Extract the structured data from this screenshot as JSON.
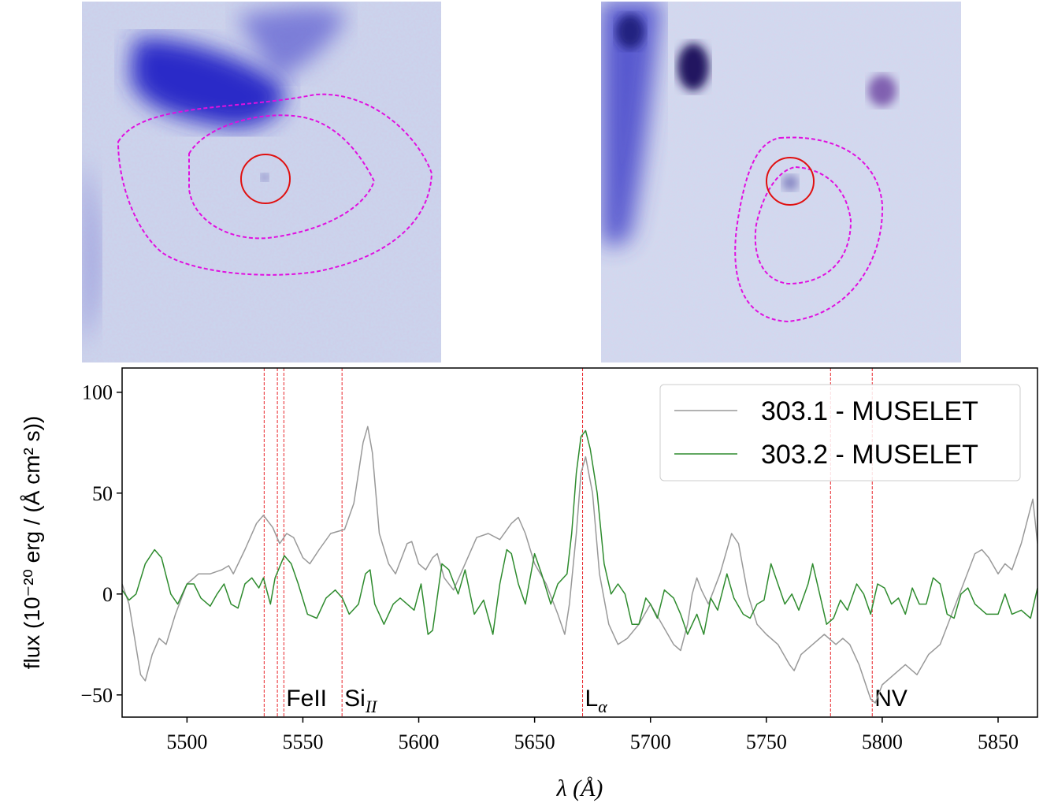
{
  "chart_data": {
    "type": "line",
    "xlabel": "λ (Å)",
    "ylabel": "flux (10⁻²⁰ erg / (Å cm² s))",
    "xlim": [
      5472,
      5867
    ],
    "ylim": [
      -61,
      112
    ],
    "xticks": [
      5500,
      5550,
      5600,
      5650,
      5700,
      5750,
      5800,
      5850
    ],
    "yticks": [
      {
        "value": -50,
        "label": "−50"
      },
      0,
      50,
      100
    ],
    "legend": "upper right",
    "line_markers": [
      {
        "x": 5533.3
      },
      {
        "x": 5539
      },
      {
        "x": 5541.8,
        "label": "FeII"
      },
      {
        "x": 5566.9,
        "label": "Si",
        "subscript": "II"
      },
      {
        "x": 5670.7,
        "label": "L",
        "subscript": "α"
      },
      {
        "x": 5777.7
      },
      {
        "x": 5795.7,
        "label": "NV"
      }
    ],
    "marker_color": "#e8242a",
    "series": [
      {
        "name": "303.1 - MUSELET",
        "color": "#999999",
        "x": [
          5472,
          5475,
          5480,
          5482,
          5485,
          5488,
          5491,
          5495,
          5500,
          5505,
          5510,
          5515,
          5518,
          5520,
          5525,
          5530,
          5533,
          5537,
          5540,
          5543,
          5546,
          5550,
          5553,
          5557,
          5562,
          5568,
          5572,
          5576,
          5578,
          5580,
          5583,
          5587,
          5590,
          5595,
          5597,
          5600,
          5603,
          5606,
          5608,
          5611,
          5615,
          5620,
          5625,
          5630,
          5635,
          5640,
          5643,
          5646,
          5650,
          5655,
          5660,
          5663,
          5665,
          5668,
          5670,
          5672,
          5675,
          5678,
          5682,
          5686,
          5690,
          5695,
          5700,
          5705,
          5710,
          5713,
          5716,
          5718,
          5720,
          5722,
          5725,
          5730,
          5735,
          5738,
          5742,
          5746,
          5750,
          5755,
          5760,
          5762,
          5765,
          5770,
          5775,
          5780,
          5783,
          5786,
          5790,
          5795,
          5797,
          5800,
          5805,
          5810,
          5815,
          5820,
          5825,
          5830,
          5835,
          5840,
          5843,
          5846,
          5850,
          5853,
          5856,
          5860,
          5865,
          5867
        ],
        "values": [
          5,
          -5,
          -40,
          -43,
          -30,
          -22,
          -25,
          -10,
          5,
          10,
          10,
          12,
          14,
          10,
          22,
          35,
          39,
          33,
          25,
          30,
          28,
          18,
          15,
          22,
          30,
          32,
          45,
          75,
          83,
          70,
          30,
          15,
          10,
          25,
          26,
          15,
          12,
          18,
          20,
          8,
          2,
          15,
          28,
          30,
          27,
          35,
          38,
          30,
          15,
          5,
          -10,
          -20,
          -5,
          30,
          60,
          68,
          50,
          10,
          -15,
          -25,
          -22,
          -15,
          -5,
          -15,
          -25,
          -28,
          -15,
          0,
          8,
          2,
          -5,
          10,
          30,
          25,
          0,
          -15,
          -20,
          -25,
          -35,
          -38,
          -30,
          -25,
          -20,
          -25,
          -22,
          -25,
          -35,
          -52,
          -54,
          -45,
          -40,
          -35,
          -40,
          -30,
          -25,
          -10,
          5,
          20,
          22,
          18,
          10,
          15,
          12,
          25,
          47,
          25
        ]
      },
      {
        "name": "303.2 - MUSELET",
        "color": "#2e8b2e",
        "x": [
          5472,
          5475,
          5478,
          5482,
          5486,
          5489,
          5493,
          5496,
          5500,
          5503,
          5506,
          5510,
          5513,
          5516,
          5519,
          5522,
          5525,
          5528,
          5531,
          5533,
          5536,
          5538,
          5542,
          5545,
          5548,
          5552,
          5556,
          5560,
          5564,
          5567,
          5570,
          5574,
          5577,
          5579,
          5581,
          5585,
          5589,
          5592,
          5595,
          5598,
          5601,
          5604,
          5606,
          5610,
          5613,
          5617,
          5620,
          5624,
          5628,
          5632,
          5635,
          5638,
          5640,
          5643,
          5646,
          5650,
          5653,
          5657,
          5660,
          5664,
          5666,
          5668,
          5670,
          5672,
          5674,
          5677,
          5680,
          5683,
          5686,
          5689,
          5692,
          5695,
          5698,
          5700,
          5703,
          5706,
          5710,
          5713,
          5716,
          5720,
          5723,
          5726,
          5729,
          5733,
          5736,
          5740,
          5743,
          5746,
          5749,
          5752,
          5755,
          5758,
          5761,
          5764,
          5768,
          5770,
          5773,
          5776,
          5779,
          5782,
          5785,
          5789,
          5792,
          5795,
          5798,
          5801,
          5804,
          5807,
          5810,
          5813,
          5816,
          5819,
          5822,
          5825,
          5828,
          5831,
          5834,
          5837,
          5840,
          5845,
          5850,
          5853,
          5856,
          5860,
          5864,
          5867
        ],
        "values": [
          2,
          -3,
          0,
          15,
          22,
          18,
          0,
          -5,
          5,
          5,
          -2,
          -6,
          0,
          5,
          -5,
          -7,
          5,
          8,
          3,
          8,
          -5,
          8,
          19,
          15,
          5,
          -10,
          -12,
          -2,
          2,
          -2,
          -10,
          -5,
          10,
          12,
          -5,
          -15,
          -5,
          -2,
          -5,
          -8,
          5,
          -20,
          -18,
          15,
          12,
          0,
          12,
          -10,
          -3,
          -20,
          5,
          22,
          20,
          5,
          -5,
          20,
          10,
          -5,
          5,
          10,
          30,
          60,
          78,
          81,
          72,
          50,
          15,
          0,
          5,
          0,
          -15,
          -15,
          -2,
          -5,
          -12,
          2,
          -2,
          -10,
          -20,
          -10,
          -20,
          -2,
          -8,
          10,
          -2,
          -10,
          -12,
          -5,
          -3,
          15,
          5,
          -5,
          0,
          -8,
          5,
          15,
          0,
          -15,
          -12,
          -3,
          -8,
          5,
          0,
          -10,
          5,
          3,
          -5,
          -2,
          -10,
          3,
          -5,
          -5,
          8,
          5,
          -10,
          -12,
          0,
          3,
          -5,
          -10,
          -10,
          0,
          -10,
          -8,
          -12,
          3
        ]
      }
    ]
  }
}
